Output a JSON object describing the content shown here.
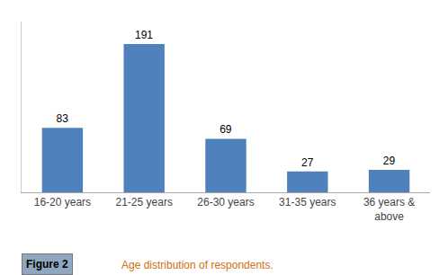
{
  "chart_data": {
    "type": "bar",
    "categories": [
      "16-20 years",
      "21-25 years",
      "26-30 years",
      "31-35 years",
      "36 years &\nabove"
    ],
    "values": [
      83,
      191,
      69,
      27,
      29
    ],
    "color": "#4f81bd",
    "ylim": [
      0,
      220
    ],
    "grid": false,
    "data_labels": true,
    "tick_labels": "x",
    "annotations": [
      "Figure 2",
      "Age distribution of respondents."
    ]
  }
}
